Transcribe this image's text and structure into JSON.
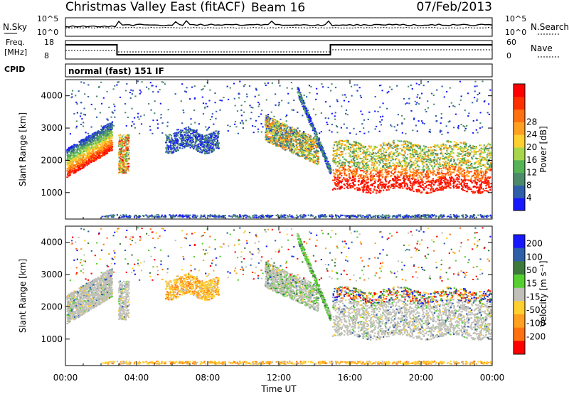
{
  "header": {
    "station": "Christmas Valley East (fitACF)",
    "beam": "Beam 16",
    "date": "07/Feb/2013",
    "mode": "normal (fast) 151 IF"
  },
  "noise_panel": {
    "left_label": "N.Sky",
    "right_label": "N.Search",
    "left_ticks": [
      "10^5",
      "10^0"
    ],
    "right_ticks": [
      "10^5",
      "10^0"
    ]
  },
  "freq_panel": {
    "left_label": "Freq.",
    "left_unit": "[MHz]",
    "right_label": "Nave",
    "left_ticks": [
      "18",
      "8"
    ],
    "right_ticks": [
      "60",
      "0"
    ],
    "cpid_label": "CPID"
  },
  "time_axis": {
    "label": "Time UT",
    "ticks": [
      "00:00",
      "04:00",
      "08:00",
      "12:00",
      "16:00",
      "20:00",
      "00:00"
    ]
  },
  "chart_data": [
    {
      "type": "heatmap",
      "quantity": "power",
      "ylabel": "Slant Range [km]",
      "yticks": [
        "1000",
        "2000",
        "3000",
        "4000"
      ],
      "ylim": [
        180,
        4500
      ],
      "xlim_hours": [
        0,
        24
      ],
      "colorbar_label": "Power [dB]",
      "colorbar_ticks": [
        "4",
        "8",
        "12",
        "16",
        "20",
        "24",
        "28"
      ],
      "colorbar_colors": [
        "#1818ff",
        "#2e5fa8",
        "#4d8a6a",
        "#56b356",
        "#a8d64a",
        "#ffd030",
        "#ffa020",
        "#ff7010",
        "#ff3000",
        "#ff0000"
      ]
    },
    {
      "type": "heatmap",
      "quantity": "velocity",
      "ylabel": "Slant Range [km]",
      "yticks": [
        "1000",
        "2000",
        "3000",
        "4000"
      ],
      "ylim": [
        180,
        4500
      ],
      "xlim_hours": [
        0,
        24
      ],
      "colorbar_label": "Velocity [m s⁻¹]",
      "colorbar_ticks": [
        "200",
        "100",
        "50",
        "15",
        "-15",
        "-50",
        "-100",
        "-200"
      ],
      "colorbar_colors": [
        "#1818ff",
        "#2e5fa8",
        "#3c7a3c",
        "#55d030",
        "#c0c0b8",
        "#ffd030",
        "#ffa020",
        "#ff7010",
        "#ff0000"
      ]
    }
  ]
}
